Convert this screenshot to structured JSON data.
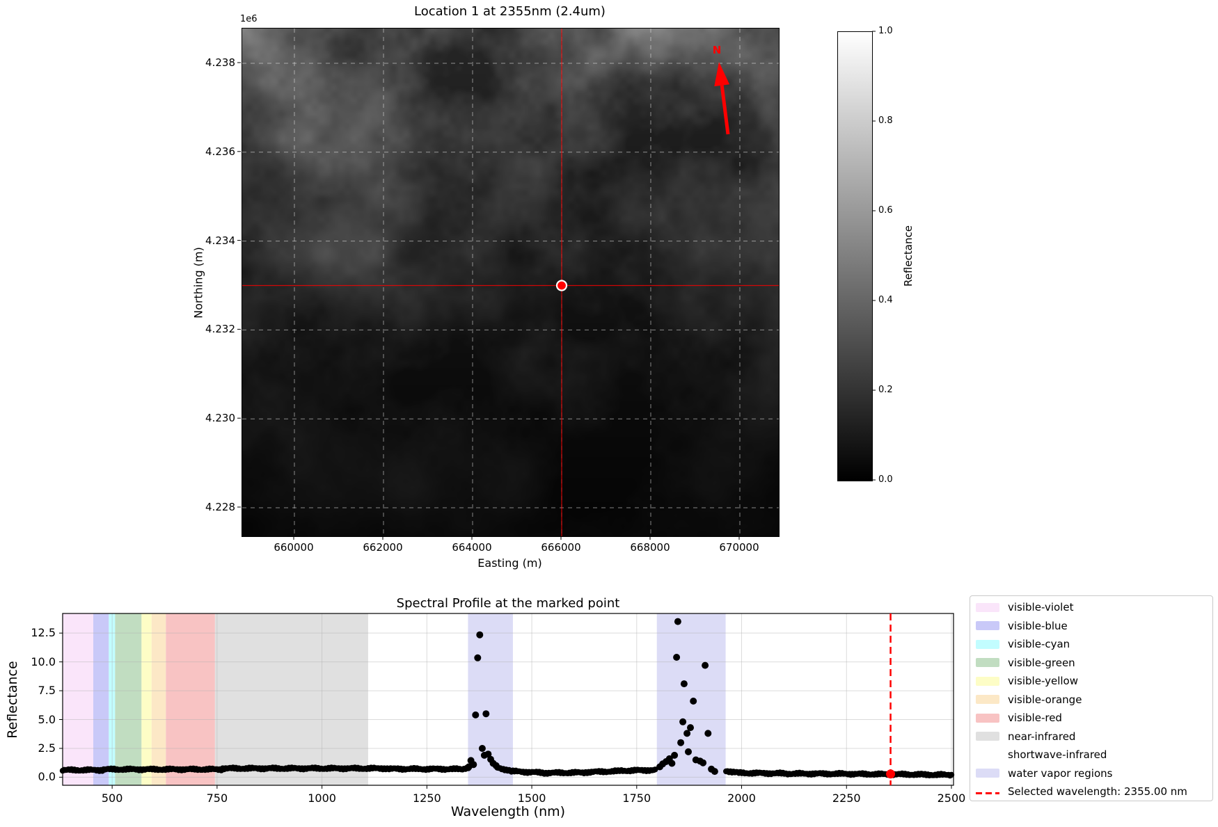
{
  "chart_data": [
    {
      "type": "heatmap",
      "title": "Location 1 at 2355nm (2.4um)",
      "axis_offset_label": "1e6",
      "xlabel": "Easting (m)",
      "ylabel": "Northing (m)",
      "x_ticks": [
        660000,
        662000,
        664000,
        666000,
        668000,
        670000
      ],
      "y_ticks_times_1e6": [
        4.238,
        4.236,
        4.234,
        4.232,
        4.23,
        4.228
      ],
      "grid": true,
      "cmap": "gray",
      "colorbar": {
        "label": "Reflectance",
        "ticks": [
          1.0,
          0.8,
          0.6,
          0.4,
          0.2,
          0.0
        ],
        "range": [
          0,
          1
        ]
      },
      "marked_point": {
        "easting": 666000,
        "northing": 4233000
      },
      "north_arrow_label": "N",
      "marker_color": "#ff0000",
      "crosshair_color": "#ff0000"
    },
    {
      "type": "scatter",
      "title": "Spectral Profile at the marked point",
      "xlabel": "Wavelength (nm)",
      "ylabel": "Reflectance",
      "x_ticks": [
        500,
        750,
        1000,
        1250,
        1500,
        1750,
        2000,
        2250,
        2500
      ],
      "y_ticks": [
        0.0,
        2.5,
        5.0,
        7.5,
        10.0,
        12.5
      ],
      "xlim": [
        382,
        2505
      ],
      "ylim": [
        -0.7,
        14.2
      ],
      "grid": true,
      "point_color": "#000000",
      "bands": [
        {
          "name": "visible-violet",
          "nm": [
            380,
            455
          ],
          "color": "#fae5fa"
        },
        {
          "name": "visible-blue",
          "nm": [
            455,
            492
          ],
          "color": "#c9c9f8"
        },
        {
          "name": "visible-cyan",
          "nm": [
            492,
            507
          ],
          "color": "#c2fdff"
        },
        {
          "name": "visible-green",
          "nm": [
            507,
            570
          ],
          "color": "#c1ddc1"
        },
        {
          "name": "visible-yellow",
          "nm": [
            570,
            594
          ],
          "color": "#fdfdc6"
        },
        {
          "name": "visible-orange",
          "nm": [
            594,
            628
          ],
          "color": "#fce8c6"
        },
        {
          "name": "visible-red",
          "nm": [
            628,
            745
          ],
          "color": "#f8c3c3"
        },
        {
          "name": "near-infrared",
          "nm": [
            745,
            1110
          ],
          "color": "#e0e0e0"
        },
        {
          "name": "shortwave-infrared",
          "nm": [
            1110,
            2500
          ],
          "color": "none"
        },
        {
          "name": "water-vapor-region-1",
          "nm": [
            1348,
            1455
          ],
          "color": "#dcdcf6"
        },
        {
          "name": "water-vapor-region-2",
          "nm": [
            1798,
            1962
          ],
          "color": "#dcdcf6"
        }
      ],
      "baseline_segments": [
        [
          382,
          480,
          0.62,
          0.62
        ],
        [
          480,
          760,
          0.68,
          0.68
        ],
        [
          760,
          1160,
          0.76,
          0.76
        ],
        [
          1160,
          1335,
          0.72,
          0.7
        ],
        [
          1335,
          1349,
          0.72,
          0.85
        ],
        [
          1418,
          1448,
          0.8,
          0.6
        ],
        [
          1448,
          1530,
          0.52,
          0.38
        ],
        [
          1530,
          1625,
          0.37,
          0.4
        ],
        [
          1625,
          1710,
          0.43,
          0.53
        ],
        [
          1710,
          1797,
          0.56,
          0.62
        ],
        [
          1963,
          1990,
          0.55,
          0.4
        ],
        [
          1990,
          2110,
          0.37,
          0.32
        ],
        [
          2110,
          2260,
          0.31,
          0.29
        ],
        [
          2260,
          2430,
          0.28,
          0.23
        ],
        [
          2430,
          2500,
          0.22,
          0.2
        ]
      ],
      "peak_points": [
        [
          1350,
          0.9
        ],
        [
          1355,
          1.45
        ],
        [
          1361,
          1.1
        ],
        [
          1366,
          5.4
        ],
        [
          1371,
          10.35
        ],
        [
          1376,
          12.35
        ],
        [
          1382,
          2.5
        ],
        [
          1387,
          1.9
        ],
        [
          1391,
          5.5
        ],
        [
          1396,
          2.0
        ],
        [
          1402,
          1.55
        ],
        [
          1408,
          1.2
        ],
        [
          1415,
          1.0
        ],
        [
          1805,
          0.9
        ],
        [
          1812,
          1.15
        ],
        [
          1820,
          1.35
        ],
        [
          1828,
          1.6
        ],
        [
          1834,
          1.2
        ],
        [
          1840,
          1.9
        ],
        [
          1845,
          10.4
        ],
        [
          1848,
          13.5
        ],
        [
          1855,
          3.0
        ],
        [
          1860,
          4.8
        ],
        [
          1863,
          8.1
        ],
        [
          1870,
          3.8
        ],
        [
          1873,
          2.2
        ],
        [
          1878,
          4.3
        ],
        [
          1885,
          6.6
        ],
        [
          1891,
          1.5
        ],
        [
          1901,
          1.4
        ],
        [
          1908,
          1.25
        ],
        [
          1913,
          9.7
        ],
        [
          1920,
          3.8
        ],
        [
          1928,
          0.7
        ],
        [
          1936,
          0.5
        ]
      ],
      "selected_wavelength_nm": 2355.0,
      "selected_marker": {
        "x": 2355,
        "y": 0.28,
        "color": "#ff0000"
      },
      "legend": [
        {
          "label": "visible-violet",
          "kind": "patch",
          "swatch": "#fae5fa"
        },
        {
          "label": "visible-blue",
          "kind": "patch",
          "swatch": "#c9c9f8"
        },
        {
          "label": "visible-cyan",
          "kind": "patch",
          "swatch": "#c2fdff"
        },
        {
          "label": "visible-green",
          "kind": "patch",
          "swatch": "#c1ddc1"
        },
        {
          "label": "visible-yellow",
          "kind": "patch",
          "swatch": "#fdfdc6"
        },
        {
          "label": "visible-orange",
          "kind": "patch",
          "swatch": "#fce8c6"
        },
        {
          "label": "visible-red",
          "kind": "patch",
          "swatch": "#f8c3c3"
        },
        {
          "label": "near-infrared",
          "kind": "patch",
          "swatch": "#e0e0e0"
        },
        {
          "label": "shortwave-infrared",
          "kind": "patch",
          "swatch": "none"
        },
        {
          "label": "water vapor regions",
          "kind": "patch",
          "swatch": "#dcdcf6"
        },
        {
          "label": "Selected wavelength: 2355.00 nm",
          "kind": "dashed-line",
          "color": "#ff0000"
        }
      ]
    }
  ]
}
